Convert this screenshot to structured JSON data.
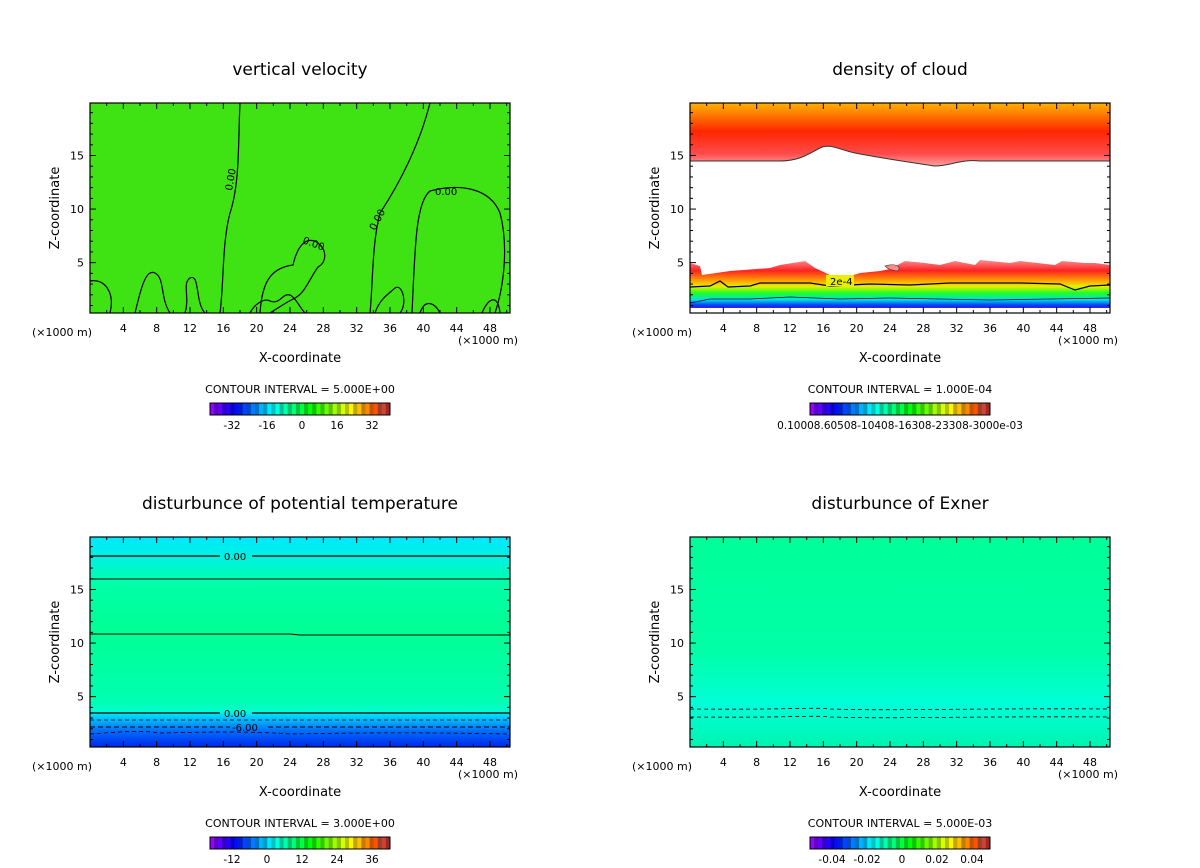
{
  "chart_data": [
    {
      "type": "heatmap",
      "title": "vertical velocity",
      "xlabel": "X-coordinate",
      "ylabel": "Z-coordinate",
      "x_unit": "(×1000 m)",
      "xlim": [
        0,
        50.4
      ],
      "ylim": [
        0.3,
        19.9
      ],
      "xticks": [
        4,
        8,
        12,
        16,
        20,
        24,
        28,
        32,
        36,
        40,
        44,
        48
      ],
      "yticks": [
        5,
        10,
        15
      ],
      "contour_labels": [
        "0.00",
        "0.00",
        "0.00",
        "0.00"
      ],
      "contour_interval": "CONTOUR INTERVAL = 5.000E+00",
      "colorbar_labels": [
        "-32",
        "-16",
        "0",
        "16",
        "32"
      ],
      "background_color": "#3fe212"
    },
    {
      "type": "heatmap",
      "title": "density of cloud",
      "xlabel": "X-coordinate",
      "ylabel": "Z-coordinate",
      "x_unit": "(×1000 m)",
      "xlim": [
        0,
        50.4
      ],
      "ylim": [
        0.3,
        19.9
      ],
      "xticks": [
        4,
        8,
        12,
        16,
        20,
        24,
        28,
        32,
        36,
        40,
        44,
        48
      ],
      "yticks": [
        5,
        10,
        15
      ],
      "contour_labels": [
        "2e-4"
      ],
      "contour_interval": "CONTOUR INTERVAL = 1.000E-04",
      "colorbar_labels": [
        "0.10008.60508-10408-16308-23308-3000e-03"
      ]
    },
    {
      "type": "heatmap",
      "title": "disturbunce of potential temperature",
      "xlabel": "X-coordinate",
      "ylabel": "Z-coordinate",
      "x_unit": "(×1000 m)",
      "xlim": [
        0,
        50.4
      ],
      "ylim": [
        0.3,
        19.9
      ],
      "xticks": [
        4,
        8,
        12,
        16,
        20,
        24,
        28,
        32,
        36,
        40,
        44,
        48
      ],
      "yticks": [
        5,
        10,
        15
      ],
      "contour_labels": [
        "0.00",
        "0.00",
        "-6.00"
      ],
      "contour_interval": "CONTOUR INTERVAL = 3.000E+00",
      "colorbar_labels": [
        "-12",
        "0",
        "12",
        "24",
        "36"
      ]
    },
    {
      "type": "heatmap",
      "title": "disturbunce of Exner",
      "xlabel": "X-coordinate",
      "ylabel": "Z-coordinate",
      "x_unit": "(×1000 m)",
      "xlim": [
        0,
        50.4
      ],
      "ylim": [
        0.3,
        19.9
      ],
      "xticks": [
        4,
        8,
        12,
        16,
        20,
        24,
        28,
        32,
        36,
        40,
        44,
        48
      ],
      "yticks": [
        5,
        10,
        15
      ],
      "contour_labels": [],
      "contour_interval": "CONTOUR INTERVAL = 5.000E-03",
      "colorbar_labels": [
        "-0.04",
        "-0.02",
        "0",
        "0.02",
        "0.04"
      ]
    }
  ]
}
